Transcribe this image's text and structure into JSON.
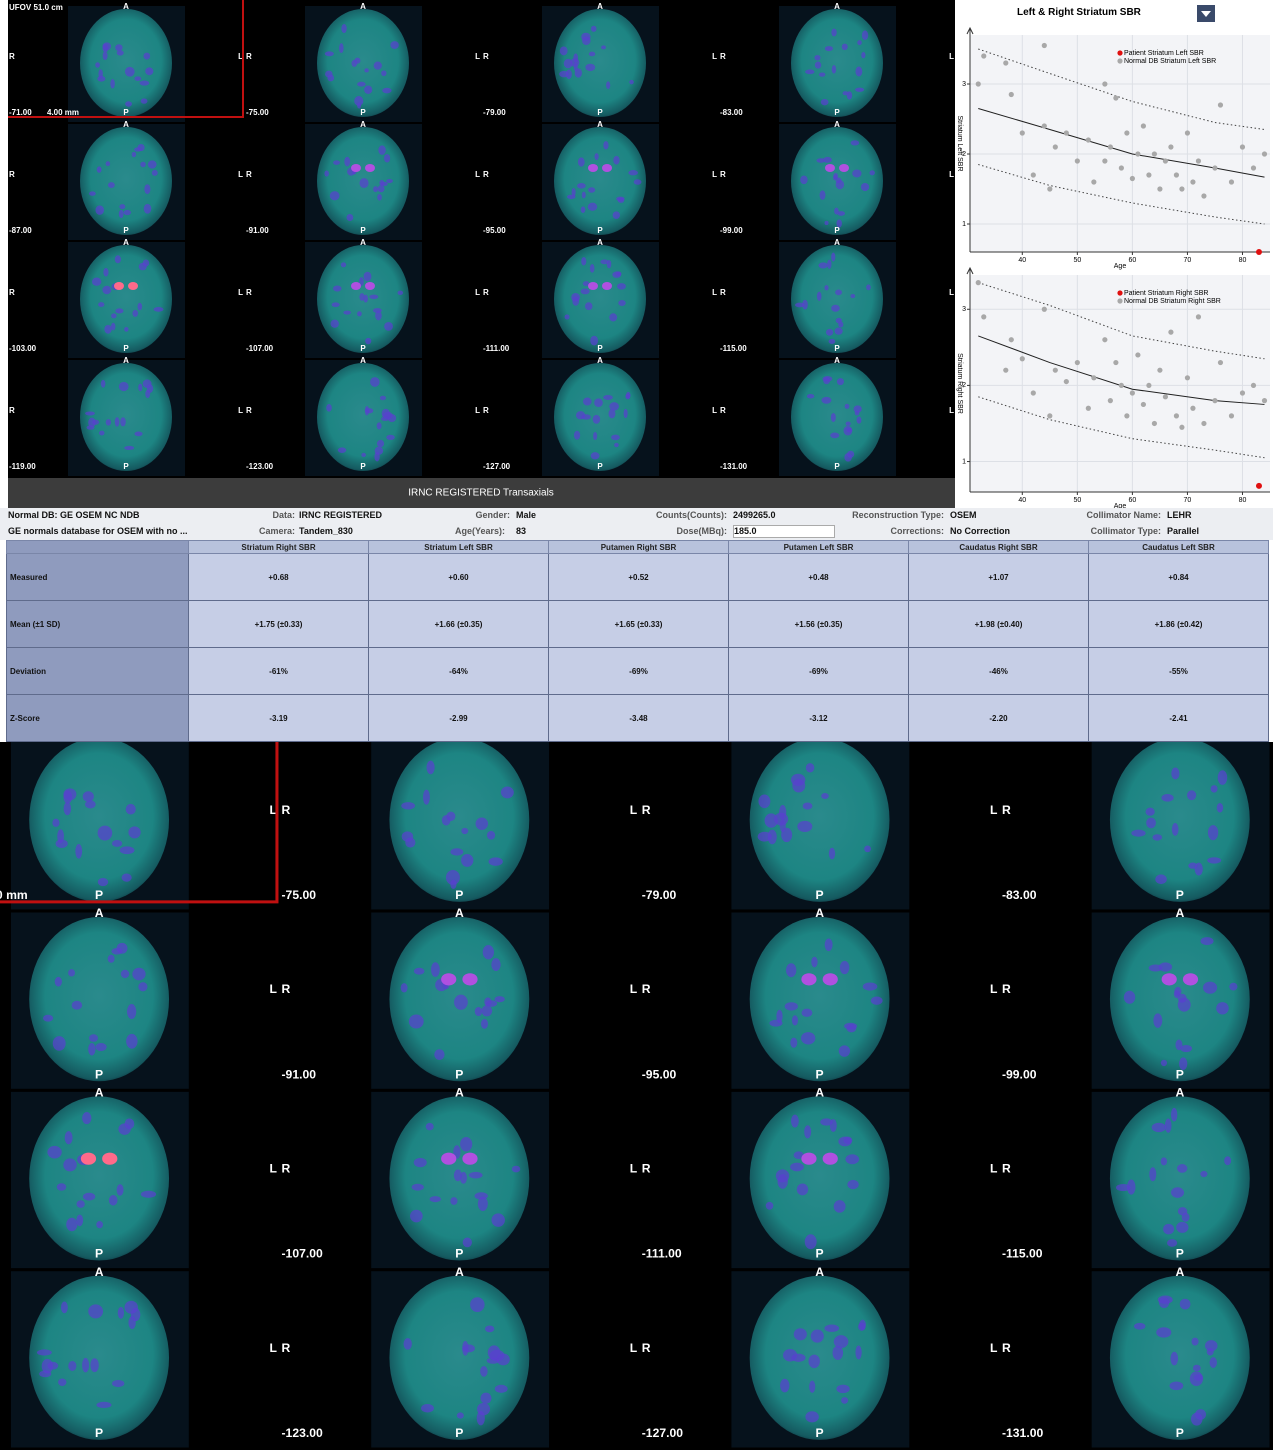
{
  "viewer": {
    "fov_label": "UFOV 51.0 cm",
    "pixel_label": "4.00 mm",
    "anterior": "A",
    "posterior": "P",
    "left": "L",
    "right": "R",
    "slices": [
      "-71.00",
      "-75.00",
      "-79.00",
      "-83.00",
      "-87.00",
      "-91.00",
      "-95.00",
      "-99.00",
      "-103.00",
      "-107.00",
      "-111.00",
      "-115.00",
      "-119.00",
      "-123.00",
      "-127.00",
      "-131.00"
    ],
    "caption": "IRNC REGISTERED Transaxials"
  },
  "selector": "Left & Right Striatum SBR",
  "chart_data": [
    {
      "type": "scatter",
      "y_label": "Striatum Left SBR",
      "x_label": "Age",
      "legend": "upper right",
      "xlim": [
        30.5,
        85
      ],
      "ylim": [
        0.6,
        3.7
      ],
      "xticks": [
        40,
        50,
        60,
        70,
        80
      ],
      "yticks": [
        1,
        2,
        3
      ],
      "grid": true,
      "series": [
        {
          "name": "Patient Striatum Left SBR",
          "color": "#e01010",
          "x": [
            83
          ],
          "values": [
            0.6
          ]
        },
        {
          "name": "Normal DB Striatum Left SBR",
          "color": "#a8a8a8",
          "x": [
            32,
            33,
            37,
            38,
            40,
            42,
            44,
            44,
            45,
            46,
            48,
            50,
            52,
            53,
            55,
            55,
            56,
            57,
            58,
            59,
            60,
            61,
            62,
            63,
            64,
            65,
            66,
            67,
            68,
            69,
            70,
            71,
            72,
            73,
            75,
            76,
            78,
            80,
            82,
            84
          ],
          "values": [
            3.0,
            3.4,
            3.3,
            2.85,
            2.3,
            1.7,
            2.4,
            3.55,
            1.5,
            2.1,
            2.3,
            1.9,
            2.2,
            1.6,
            3.0,
            1.9,
            2.1,
            2.8,
            1.8,
            2.3,
            1.65,
            2.0,
            2.4,
            1.7,
            2.0,
            1.5,
            1.9,
            2.1,
            1.7,
            1.5,
            2.3,
            1.6,
            1.9,
            1.4,
            1.8,
            2.7,
            1.6,
            2.1,
            1.8,
            2.0
          ]
        }
      ],
      "curves": [
        {
          "color": "#202020",
          "dash": false,
          "x": [
            32,
            45,
            60,
            75,
            84
          ],
          "values": [
            2.65,
            2.35,
            2.0,
            1.8,
            1.67
          ]
        },
        {
          "color": "#404040",
          "dash": true,
          "x": [
            32,
            45,
            60,
            75,
            84
          ],
          "values": [
            3.5,
            3.15,
            2.75,
            2.45,
            2.35
          ]
        },
        {
          "color": "#404040",
          "dash": true,
          "x": [
            32,
            45,
            60,
            75,
            84
          ],
          "values": [
            1.85,
            1.55,
            1.3,
            1.1,
            1.0
          ]
        }
      ]
    },
    {
      "type": "scatter",
      "y_label": "Striatum Right SBR",
      "x_label": "Age",
      "legend": "upper right",
      "xlim": [
        30.5,
        85
      ],
      "ylim": [
        0.6,
        3.45
      ],
      "xticks": [
        40,
        50,
        60,
        70,
        80
      ],
      "yticks": [
        1,
        2,
        3
      ],
      "grid": true,
      "series": [
        {
          "name": "Patient Striatum Right SBR",
          "color": "#e01010",
          "x": [
            83
          ],
          "values": [
            0.68
          ]
        },
        {
          "name": "Normal DB Striatum Right SBR",
          "color": "#a8a8a8",
          "x": [
            32,
            33,
            37,
            38,
            40,
            42,
            44,
            45,
            46,
            48,
            50,
            52,
            53,
            55,
            56,
            57,
            58,
            59,
            60,
            61,
            62,
            63,
            64,
            65,
            66,
            67,
            68,
            69,
            70,
            71,
            72,
            73,
            75,
            76,
            78,
            80,
            82,
            84
          ],
          "values": [
            3.35,
            2.9,
            2.2,
            2.6,
            2.35,
            1.9,
            3.0,
            1.6,
            2.2,
            2.05,
            2.3,
            1.7,
            2.1,
            2.6,
            1.8,
            2.3,
            2.0,
            1.6,
            1.9,
            2.4,
            1.75,
            2.0,
            1.5,
            2.2,
            1.85,
            2.7,
            1.6,
            1.45,
            2.1,
            1.7,
            2.9,
            1.5,
            1.8,
            2.3,
            1.6,
            1.9,
            2.0,
            1.8
          ]
        }
      ],
      "curves": [
        {
          "color": "#202020",
          "dash": false,
          "x": [
            32,
            45,
            60,
            75,
            84
          ],
          "values": [
            2.65,
            2.3,
            1.95,
            1.8,
            1.75
          ]
        },
        {
          "color": "#404040",
          "dash": true,
          "x": [
            32,
            45,
            60,
            75,
            84
          ],
          "values": [
            3.35,
            3.05,
            2.65,
            2.45,
            2.35
          ]
        },
        {
          "color": "#404040",
          "dash": true,
          "x": [
            32,
            45,
            60,
            75,
            84
          ],
          "values": [
            1.85,
            1.55,
            1.3,
            1.15,
            1.05
          ]
        }
      ]
    }
  ],
  "info": {
    "normal_db_label": "Normal DB:",
    "normal_db": "GE OSEM NC NDB",
    "normal_db_desc": "GE normals database for OSEM with no ...",
    "data_label": "Data:",
    "data": "IRNC REGISTERED",
    "camera_label": "Camera:",
    "camera": "Tandem_830",
    "gender_label": "Gender:",
    "gender": "Male",
    "age_label": "Age(Years):",
    "age": "83",
    "counts_label": "Counts(Counts):",
    "counts": "2499265.0",
    "dose_label": "Dose(MBq):",
    "dose": "185.0",
    "recon_label": "Reconstruction Type:",
    "recon": "OSEM",
    "corrections_label": "Corrections:",
    "corrections": "No Correction",
    "collimator_name_label": "Collimator Name:",
    "collimator_name": "LEHR",
    "collimator_type_label": "Collimator Type:",
    "collimator_type": "Parallel"
  },
  "table": {
    "columns": [
      "Striatum Right SBR",
      "Striatum Left SBR",
      "Putamen Right SBR",
      "Putamen Left SBR",
      "Caudatus Right SBR",
      "Caudatus Left SBR"
    ],
    "rows": [
      {
        "label": "Measured",
        "cells": [
          "+0.68",
          "+0.60",
          "+0.52",
          "+0.48",
          "+1.07",
          "+0.84"
        ]
      },
      {
        "label": "Mean (±1 SD)",
        "cells": [
          "+1.75 (±0.33)",
          "+1.66 (±0.35)",
          "+1.65 (±0.33)",
          "+1.56 (±0.35)",
          "+1.98 (±0.40)",
          "+1.86 (±0.42)"
        ]
      },
      {
        "label": "Deviation",
        "cells": [
          "-61%",
          "-64%",
          "-69%",
          "-69%",
          "-46%",
          "-55%"
        ]
      },
      {
        "label": "Z-Score",
        "cells": [
          "-3.19",
          "-2.99",
          "-3.48",
          "-3.12",
          "-2.20",
          "-2.41"
        ]
      }
    ]
  }
}
